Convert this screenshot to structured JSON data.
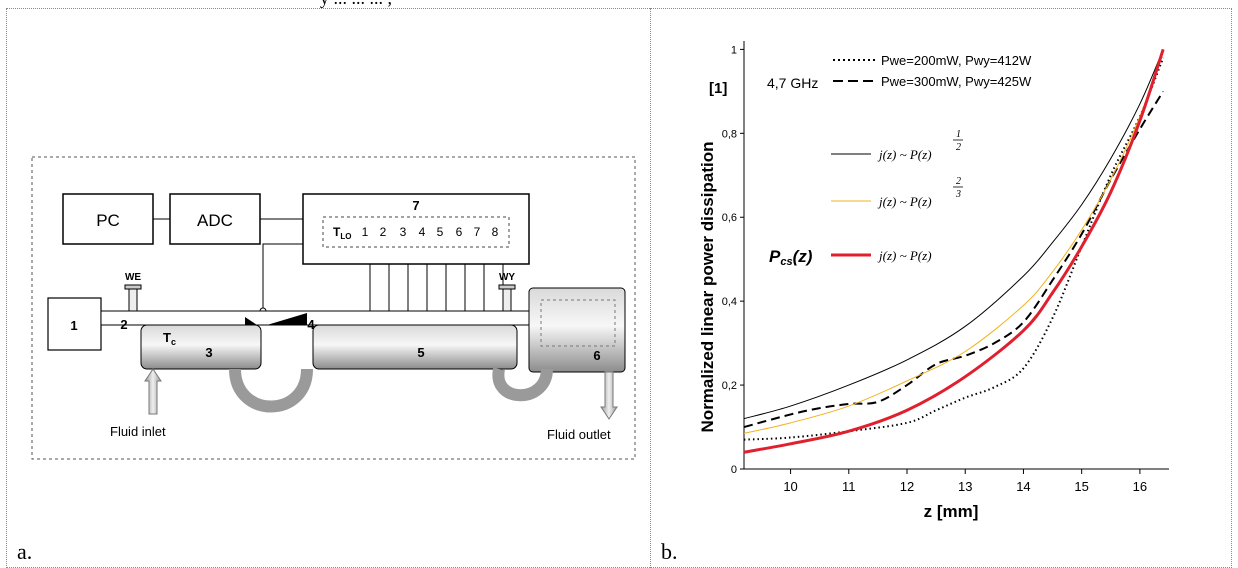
{
  "header_fragment": "y ... ... ... ,",
  "panel_a": {
    "caption": "a.",
    "blocks": {
      "pc": "PC",
      "adc": "ADC",
      "seven": "7",
      "one": "1",
      "two": "2",
      "three": "3",
      "four": "4",
      "five": "5",
      "six": "6"
    },
    "sensor_labels": [
      "T",
      "1",
      "2",
      "3",
      "4",
      "5",
      "6",
      "7",
      "8"
    ],
    "tlo_sub": "LO",
    "tc_main": "T",
    "tc_sub": "c",
    "we": "WE",
    "wy": "WY",
    "fluid_inlet": "Fluid inlet",
    "fluid_outlet": "Fluid outlet"
  },
  "panel_b": {
    "caption": "b."
  },
  "chart_data": {
    "type": "line",
    "xlabel": "z [mm]",
    "ylabel": "Normalized linear power dissipation",
    "yunit": "[1]",
    "frequency": "4,7 GHz",
    "xlim": [
      9.2,
      16.5
    ],
    "ylim": [
      0,
      1.02
    ],
    "xticks": [
      "10",
      "11",
      "12",
      "13",
      "14",
      "15",
      "16"
    ],
    "yticks": [
      "0",
      "0,2",
      "0,4",
      "0,6",
      "0,8",
      "1"
    ],
    "legend_measured": [
      {
        "label": "Pwe=200mW, Pwy=412W",
        "style": "dotted"
      },
      {
        "label": "Pwe=300mW, Pwy=425W",
        "style": "dashed"
      }
    ],
    "legend_model": [
      {
        "formula": "j(z) ~ P(z)",
        "exponent_num": "1",
        "exponent_den": "2",
        "color": "#000000"
      },
      {
        "formula": "j(z) ~ P(z)",
        "exponent_num": "2",
        "exponent_den": "3",
        "color": "#f2b21c"
      },
      {
        "formula": "j(z) ~ P(z)",
        "exponent_num": "",
        "exponent_den": "",
        "color": "#e0202e"
      }
    ],
    "pcs_label_main": "P",
    "pcs_label_sub": "cs",
    "pcs_label_tail": "(z)",
    "series": [
      {
        "name": "Pwe=200mW, Pwy=412W",
        "style": "dotted",
        "color": "#000000",
        "x": [
          9.2,
          10,
          11,
          12,
          12.5,
          13,
          13.5,
          14,
          14.5,
          15,
          15.5,
          16,
          16.4
        ],
        "y": [
          0.07,
          0.075,
          0.09,
          0.11,
          0.14,
          0.17,
          0.195,
          0.24,
          0.36,
          0.53,
          0.7,
          0.84,
          0.98
        ]
      },
      {
        "name": "Pwe=300mW, Pwy=425W",
        "style": "dashed",
        "color": "#000000",
        "x": [
          9.2,
          10,
          10.5,
          11,
          11.5,
          12,
          12.5,
          13,
          13.5,
          14,
          14.5,
          15,
          15.5,
          16,
          16.4
        ],
        "y": [
          0.1,
          0.13,
          0.145,
          0.155,
          0.16,
          0.2,
          0.25,
          0.27,
          0.3,
          0.35,
          0.45,
          0.56,
          0.69,
          0.81,
          0.9
        ]
      },
      {
        "name": "j(z) ~ P(z)^(1/2)",
        "style": "solid",
        "color": "#000000",
        "x": [
          9.2,
          10,
          11,
          12,
          13,
          14,
          14.5,
          15,
          15.5,
          16,
          16.4
        ],
        "y": [
          0.12,
          0.15,
          0.2,
          0.26,
          0.34,
          0.46,
          0.54,
          0.63,
          0.74,
          0.87,
          1.0
        ]
      },
      {
        "name": "j(z) ~ P(z)^(2/3)",
        "style": "solid",
        "color": "#f2b21c",
        "x": [
          9.2,
          10,
          11,
          12,
          13,
          14,
          14.5,
          15,
          15.5,
          16,
          16.4
        ],
        "y": [
          0.085,
          0.11,
          0.15,
          0.21,
          0.28,
          0.39,
          0.47,
          0.57,
          0.69,
          0.84,
          1.0
        ]
      },
      {
        "name": "j(z) ~ P(z)",
        "style": "solid",
        "color": "#e0202e",
        "x": [
          9.2,
          10,
          11,
          12,
          13,
          14,
          14.5,
          15,
          15.5,
          16,
          16.4
        ],
        "y": [
          0.04,
          0.06,
          0.09,
          0.14,
          0.22,
          0.33,
          0.42,
          0.53,
          0.66,
          0.83,
          1.0
        ]
      }
    ]
  }
}
